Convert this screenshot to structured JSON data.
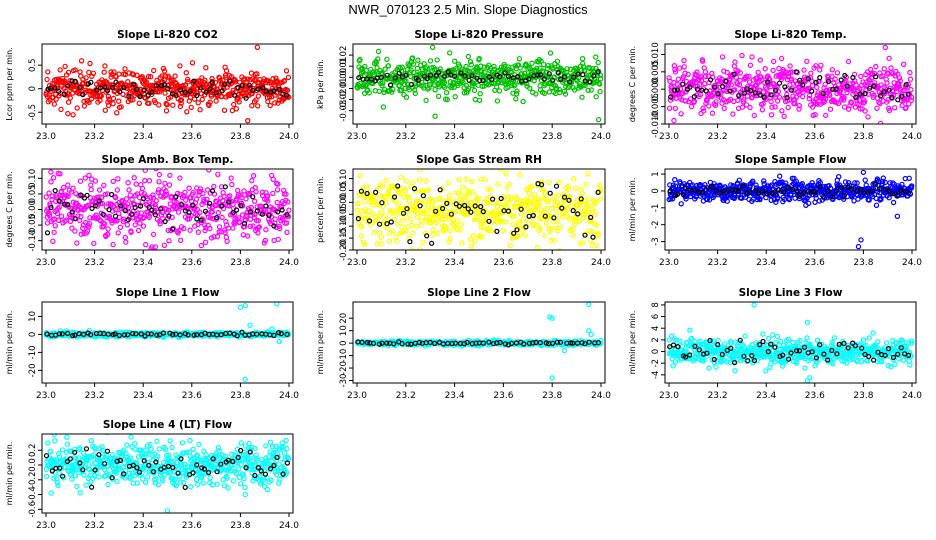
{
  "page": {
    "title": "NWR_070123  2.5 Min. Slope Diagnostics"
  },
  "chart_data": [
    {
      "type": "scatter",
      "title": "Slope Li-820 CO2",
      "ylabel": "Lcor ppm per min.",
      "color": "#ff0000",
      "xlim": [
        23.0,
        24.0
      ],
      "ylim": [
        -0.75,
        0.95
      ],
      "xticks": [
        23.0,
        23.2,
        23.4,
        23.6,
        23.8,
        24.0
      ],
      "yticks": [
        -0.5,
        0,
        0.5
      ],
      "ytick_labels": [
        "-0.5",
        "0",
        "0.5"
      ],
      "center": 0.0,
      "spread": 0.2,
      "black_spread": 0.1,
      "outliers": [
        [
          23.87,
          0.88
        ],
        [
          23.83,
          -0.68
        ]
      ]
    },
    {
      "type": "scatter",
      "title": "Slope Li-820 Pressure",
      "ylabel": "kPa per min.",
      "color": "#00c000",
      "xlim": [
        23.0,
        24.0
      ],
      "ylim": [
        -0.042,
        0.03
      ],
      "xticks": [
        23.0,
        23.2,
        23.4,
        23.6,
        23.8,
        24.0
      ],
      "yticks": [
        -0.03,
        -0.02,
        -0.01,
        0.0,
        0.01,
        0.02
      ],
      "ytick_labels": [
        "-0.03",
        "-0.02",
        "-0.01",
        "0.00",
        "0.01",
        "0.02"
      ],
      "center": 0.0,
      "spread": 0.008,
      "black_spread": 0.003,
      "outliers": [
        [
          23.32,
          -0.035
        ],
        [
          23.99,
          -0.038
        ],
        [
          23.37,
          -0.02
        ],
        [
          23.31,
          0.027
        ],
        [
          23.38,
          0.022
        ]
      ]
    },
    {
      "type": "scatter",
      "title": "Slope Li-820 Temp.",
      "ylabel": "degrees C per min.",
      "color": "#ff00ff",
      "xlim": [
        23.0,
        24.0
      ],
      "ylim": [
        -0.01,
        0.013
      ],
      "xticks": [
        23.0,
        23.2,
        23.4,
        23.6,
        23.8,
        24.0
      ],
      "yticks": [
        -0.01,
        -0.005,
        0.0,
        0.005,
        0.01
      ],
      "ytick_labels": [
        "-0.010",
        "-0.005",
        "0.000",
        "0.005",
        "0.010"
      ],
      "center": 0.0,
      "spread": 0.0035,
      "black_spread": 0.002,
      "outliers": [
        [
          23.89,
          0.012
        ],
        [
          23.02,
          -0.009
        ]
      ]
    },
    {
      "type": "scatter",
      "title": "Slope Amb. Box Temp.",
      "ylabel": "degrees C per min.",
      "color": "#ff00ff",
      "xlim": [
        23.0,
        24.0
      ],
      "ylim": [
        -0.13,
        0.13
      ],
      "xticks": [
        23.0,
        23.2,
        23.4,
        23.6,
        23.8,
        24.0
      ],
      "yticks": [
        -0.1,
        -0.05,
        0.0,
        0.05,
        0.1
      ],
      "ytick_labels": [
        "-0.10",
        "-0.05",
        "0.00",
        "0.05",
        "0.10"
      ],
      "center": 0.0,
      "spread": 0.05,
      "black_spread": 0.03,
      "outliers": [
        [
          23.02,
          0.12
        ],
        [
          23.45,
          -0.12
        ]
      ]
    },
    {
      "type": "scatter",
      "title": "Slope Gas Stream RH",
      "ylabel": "percent per min.",
      "color": "#ffff00",
      "xlim": [
        23.0,
        24.0
      ],
      "ylim": [
        -0.2,
        0.14
      ],
      "xticks": [
        23.0,
        23.2,
        23.4,
        23.6,
        23.8,
        24.0
      ],
      "yticks": [
        -0.2,
        -0.15,
        -0.1,
        -0.05,
        0.0,
        0.05,
        0.1
      ],
      "ytick_labels": [
        "-0.20",
        "-0.15",
        "-0.10",
        "-0.05",
        "0.00",
        "0.05",
        "0.10"
      ],
      "center": -0.03,
      "spread": 0.07,
      "black_spread": 0.06,
      "outliers": [
        [
          23.74,
          -0.19
        ],
        [
          23.43,
          -0.17
        ]
      ]
    },
    {
      "type": "scatter",
      "title": "Slope Sample Flow",
      "ylabel": "ml/min per min.",
      "color": "#0000ff",
      "xlim": [
        23.0,
        24.0
      ],
      "ylim": [
        -3.5,
        1.3
      ],
      "xticks": [
        23.0,
        23.2,
        23.4,
        23.6,
        23.8,
        24.0
      ],
      "yticks": [
        -3,
        -2,
        -1,
        0,
        1
      ],
      "ytick_labels": [
        "-3",
        "-2",
        "-1",
        "0",
        "1"
      ],
      "center": 0.0,
      "spread": 0.3,
      "black_spread": 0.15,
      "outliers": [
        [
          23.8,
          1.1
        ],
        [
          23.79,
          -2.9
        ],
        [
          23.78,
          -3.3
        ],
        [
          23.94,
          -1.5
        ]
      ]
    },
    {
      "type": "scatter",
      "title": "Slope Line 1 Flow",
      "ylabel": "ml/min per min.",
      "color": "#00ffff",
      "xlim": [
        23.0,
        24.0
      ],
      "ylim": [
        -27,
        18
      ],
      "xticks": [
        23.0,
        23.2,
        23.4,
        23.6,
        23.8,
        24.0
      ],
      "yticks": [
        -20,
        -10,
        0,
        10
      ],
      "ytick_labels": [
        "-20",
        "-10",
        "0",
        "10"
      ],
      "center": 0.0,
      "spread": 0.6,
      "black_spread": 0.4,
      "outliers": [
        [
          23.8,
          15
        ],
        [
          23.82,
          16
        ],
        [
          23.95,
          17
        ],
        [
          23.82,
          -25
        ],
        [
          23.96,
          -4
        ],
        [
          23.93,
          3
        ],
        [
          23.84,
          5
        ]
      ]
    },
    {
      "type": "scatter",
      "title": "Slope Line 2 Flow",
      "ylabel": "ml/min per min.",
      "color": "#00ffff",
      "xlim": [
        23.0,
        24.0
      ],
      "ylim": [
        -32,
        33
      ],
      "xticks": [
        23.0,
        23.2,
        23.4,
        23.6,
        23.8,
        24.0
      ],
      "yticks": [
        -30,
        -20,
        -10,
        0,
        10,
        20
      ],
      "ytick_labels": [
        "-30",
        "-20",
        "-10",
        "0",
        "10",
        "20"
      ],
      "center": 0.0,
      "spread": 0.8,
      "black_spread": 0.5,
      "outliers": [
        [
          23.79,
          21
        ],
        [
          23.8,
          20
        ],
        [
          23.95,
          31
        ],
        [
          23.8,
          -28
        ],
        [
          23.95,
          10
        ],
        [
          23.96,
          7
        ],
        [
          23.85,
          -6
        ]
      ]
    },
    {
      "type": "scatter",
      "title": "Slope Line 3 Flow",
      "ylabel": "ml/min per min.",
      "color": "#00ffff",
      "xlim": [
        23.0,
        24.0
      ],
      "ylim": [
        -5.4,
        8.5
      ],
      "xticks": [
        23.0,
        23.2,
        23.4,
        23.6,
        23.8,
        24.0
      ],
      "yticks": [
        -4,
        -2,
        0,
        2,
        4,
        6,
        8
      ],
      "ytick_labels": [
        "-4",
        "-2",
        "0",
        "2",
        "4",
        "6",
        "8"
      ],
      "center": 0.0,
      "spread": 1.1,
      "black_spread": 0.9,
      "outliers": [
        [
          23.35,
          8.0
        ],
        [
          23.57,
          -5.0
        ],
        [
          23.58,
          -4.5
        ],
        [
          23.57,
          5.0
        ],
        [
          23.84,
          3.2
        ]
      ]
    },
    {
      "type": "scatter",
      "title": "Slope Line 4 (LT) Flow",
      "ylabel": "ml/min per min.",
      "color": "#00ffff",
      "xlim": [
        23.0,
        24.0
      ],
      "ylim": [
        -0.65,
        0.42
      ],
      "xticks": [
        23.0,
        23.2,
        23.4,
        23.6,
        23.8,
        24.0
      ],
      "yticks": [
        -0.6,
        -0.4,
        -0.2,
        0.0,
        0.2
      ],
      "ytick_labels": [
        "-0.6",
        "-0.4",
        "-0.2",
        "0.0",
        "0.2"
      ],
      "center": 0.0,
      "spread": 0.13,
      "black_spread": 0.1,
      "outliers": [
        [
          23.5,
          -0.62
        ],
        [
          23.35,
          0.38
        ],
        [
          23.82,
          -0.4
        ]
      ]
    }
  ]
}
